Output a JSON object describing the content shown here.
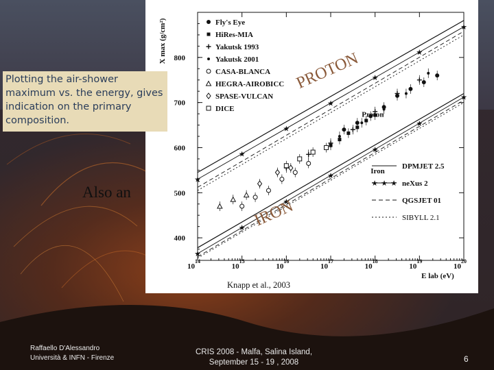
{
  "slide": {
    "callout_text": "Plotting the air-shower maximum vs. the energy, gives indication on the primary composition.",
    "also_text": "Also an",
    "footer_author_line1": "Raffaello D'Alessandro",
    "footer_author_line2": "Università & INFN - Firenze",
    "footer_conf_line1": "CRIS 2008 -   Malfa, Salina Island,",
    "footer_conf_line2": "September 15 - 19 , 2008",
    "page_number": "6",
    "colors": {
      "callout_bg": "#e8dbb7",
      "callout_text": "#2a3d5a",
      "overlay_label": "#8a5a3a"
    }
  },
  "chart_data": {
    "type": "scatter",
    "ylabel": "X max (g/cm²)",
    "xlabel": "E lab (eV)",
    "xlim": [
      14,
      20
    ],
    "ylim": [
      350,
      900
    ],
    "x_tick_labels": [
      "10",
      "10",
      "10",
      "10",
      "10",
      "10",
      "10"
    ],
    "x_tick_exponents": [
      "14",
      "15",
      "16",
      "17",
      "18",
      "19",
      "20"
    ],
    "x_ticks": [
      14,
      15,
      16,
      17,
      18,
      19,
      20
    ],
    "y_tick_labels": [
      "400",
      "500",
      "600",
      "700",
      "800"
    ],
    "y_ticks": [
      400,
      500,
      600,
      700,
      800
    ],
    "annotations": {
      "proton_label": "Proton",
      "iron_label": "Iron",
      "proton_overlay": "PROTON",
      "iron_overlay": "IRON",
      "citation": "Knapp et al., 2003"
    },
    "experiments_legend": [
      "Fly's Eye",
      "HiRes-MIA",
      "Yakutsk 1993",
      "Yakutsk 2001",
      "CASA-BLANCA",
      "HEGRA-AIROBICC",
      "SPASE-VULCAN",
      "DICE"
    ],
    "model_legend": [
      "DPMJET 2.5",
      "neXus 2",
      "QGSJET 01",
      "SIBYLL 2.1"
    ],
    "model_lines": [
      {
        "name": "DPMJET 2.5",
        "style": "solid",
        "proton": [
          [
            14,
            545
          ],
          [
            20,
            882
          ]
        ],
        "iron": [
          [
            14,
            378
          ],
          [
            20,
            720
          ]
        ]
      },
      {
        "name": "neXus 2",
        "style": "star",
        "proton": [
          [
            14,
            530
          ],
          [
            20,
            868
          ]
        ],
        "iron": [
          [
            14,
            365
          ],
          [
            20,
            712
          ]
        ]
      },
      {
        "name": "QGSJET 01",
        "style": "dashed",
        "proton": [
          [
            14,
            512
          ],
          [
            20,
            858
          ]
        ],
        "iron": [
          [
            14,
            358
          ],
          [
            20,
            705
          ]
        ]
      },
      {
        "name": "SIBYLL 2.1",
        "style": "dotted",
        "proton": [
          [
            14,
            505
          ],
          [
            20,
            850
          ]
        ],
        "iron": [
          [
            14,
            355
          ],
          [
            20,
            700
          ]
        ]
      }
    ],
    "series": [
      {
        "name": "Fly's Eye",
        "marker": "filled-circle",
        "points": [
          [
            17.3,
            640
          ],
          [
            17.6,
            655
          ],
          [
            17.9,
            670
          ],
          [
            18.2,
            690
          ],
          [
            18.5,
            715
          ],
          [
            18.8,
            730
          ],
          [
            19.1,
            745
          ],
          [
            19.4,
            760
          ]
        ]
      },
      {
        "name": "HiRes-MIA",
        "marker": "filled-square",
        "points": [
          [
            17.0,
            605
          ],
          [
            17.2,
            618
          ],
          [
            17.4,
            632
          ],
          [
            17.6,
            645
          ],
          [
            17.8,
            660
          ],
          [
            18.0,
            672
          ]
        ]
      },
      {
        "name": "Yakutsk 1993",
        "marker": "cross",
        "points": [
          [
            16.0,
            555
          ],
          [
            16.5,
            585
          ],
          [
            17.0,
            610
          ],
          [
            17.5,
            640
          ],
          [
            18.0,
            680
          ],
          [
            18.5,
            720
          ],
          [
            19.0,
            750
          ]
        ]
      },
      {
        "name": "Yakutsk 2001",
        "marker": "filled-circle-small",
        "points": [
          [
            17.2,
            625
          ],
          [
            17.7,
            655
          ],
          [
            18.2,
            685
          ],
          [
            18.7,
            720
          ],
          [
            19.2,
            765
          ]
        ]
      },
      {
        "name": "CASA-BLANCA",
        "marker": "open-circle",
        "points": [
          [
            15.0,
            470
          ],
          [
            15.3,
            490
          ],
          [
            15.6,
            505
          ],
          [
            15.9,
            530
          ],
          [
            16.2,
            545
          ],
          [
            16.5,
            565
          ]
        ]
      },
      {
        "name": "HEGRA-AIROBICC",
        "marker": "open-triangle",
        "points": [
          [
            14.5,
            470
          ],
          [
            14.8,
            485
          ],
          [
            15.1,
            495
          ]
        ]
      },
      {
        "name": "SPASE-VULCAN",
        "marker": "open-diamond",
        "points": [
          [
            15.4,
            520
          ],
          [
            15.8,
            545
          ],
          [
            16.1,
            555
          ]
        ]
      },
      {
        "name": "DICE",
        "marker": "open-square",
        "points": [
          [
            16.0,
            560
          ],
          [
            16.3,
            575
          ],
          [
            16.6,
            590
          ],
          [
            16.9,
            600
          ]
        ]
      }
    ],
    "grid": false
  }
}
